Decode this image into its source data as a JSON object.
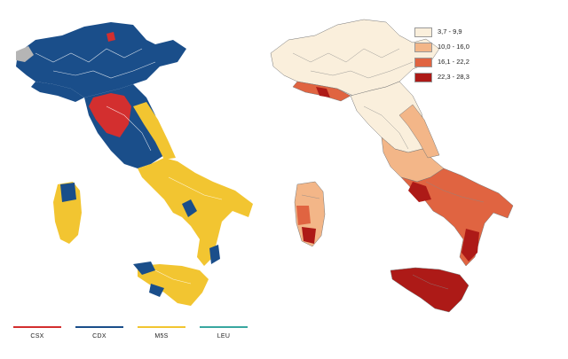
{
  "party_legend": {
    "items": [
      {
        "label": "CSX",
        "color": "#d32f2f"
      },
      {
        "label": "CDX",
        "color": "#1a4e8a"
      },
      {
        "label": "M5S",
        "color": "#f2c531"
      },
      {
        "label": "LEU",
        "color": "#39a7a0"
      }
    ]
  },
  "range_legend": {
    "items": [
      {
        "label": "3,7 - 9,9",
        "color": "#faefdc"
      },
      {
        "label": "10,0 - 16,0",
        "color": "#f3b688"
      },
      {
        "label": "16,1 - 22,2",
        "color": "#e06441"
      },
      {
        "label": "22,3 - 28,3",
        "color": "#ad1a17"
      }
    ]
  }
}
